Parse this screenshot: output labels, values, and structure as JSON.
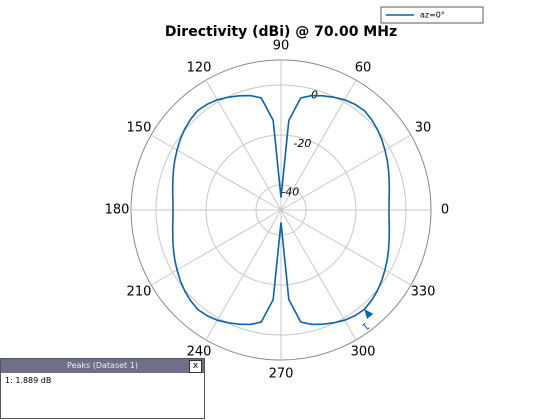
{
  "chart_data": {
    "type": "polar",
    "title": "Directivity (dBi) @ 70.00 MHz",
    "theta": [
      0,
      5,
      10,
      15,
      20,
      25,
      30,
      35,
      40,
      45,
      50,
      55,
      60,
      65,
      70,
      75,
      80,
      85,
      90,
      95,
      100,
      105,
      110,
      115,
      120,
      125,
      130,
      135,
      140,
      145,
      150,
      155,
      160,
      165,
      170,
      175,
      180,
      185,
      190,
      195,
      200,
      205,
      210,
      215,
      220,
      225,
      230,
      235,
      240,
      245,
      250,
      255,
      260,
      265,
      270,
      275,
      280,
      285,
      290,
      295,
      300,
      305,
      310,
      315,
      320,
      325,
      330,
      335,
      340,
      345,
      350,
      355
    ],
    "series": [
      {
        "name": "az=0°",
        "color": "#0e62a6",
        "values": [
          -6.8,
          -6.6,
          -6.0,
          -5.2,
          -4.2,
          -3.1,
          -2.0,
          -0.8,
          0.3,
          1.2,
          1.889,
          1.6,
          0.9,
          -0.2,
          -1.4,
          -2.6,
          -4.5,
          -14,
          -45,
          -14,
          -4.5,
          -2.6,
          -1.4,
          -0.2,
          0.9,
          1.6,
          1.889,
          1.2,
          0.3,
          -0.8,
          -2.0,
          -3.1,
          -4.2,
          -5.2,
          -6.0,
          -6.6,
          -6.8,
          -6.6,
          -6.0,
          -5.2,
          -4.2,
          -3.1,
          -2.0,
          -0.8,
          0.3,
          1.2,
          1.889,
          1.6,
          0.9,
          -0.2,
          -1.4,
          -2.6,
          -4.5,
          -14,
          -45,
          -14,
          -4.5,
          -2.6,
          -1.4,
          -0.2,
          0.9,
          1.6,
          1.889,
          1.2,
          0.3,
          -0.8,
          -2.0,
          -3.1,
          -4.2,
          -5.2,
          -6.0,
          -6.6
        ]
      }
    ],
    "peak_marker": {
      "label": "1",
      "index": 62
    },
    "rlim": [
      -50,
      10
    ],
    "rticks": [
      -40,
      -20,
      0
    ],
    "thetaticks": [
      0,
      30,
      60,
      90,
      120,
      150,
      180,
      210,
      240,
      270,
      300,
      330
    ],
    "grid": true,
    "legend": "top-right"
  },
  "peaks_panel": {
    "title": "Peaks (Dataset 1)",
    "close": "x",
    "rows": [
      "1: 1.889 dB"
    ]
  }
}
